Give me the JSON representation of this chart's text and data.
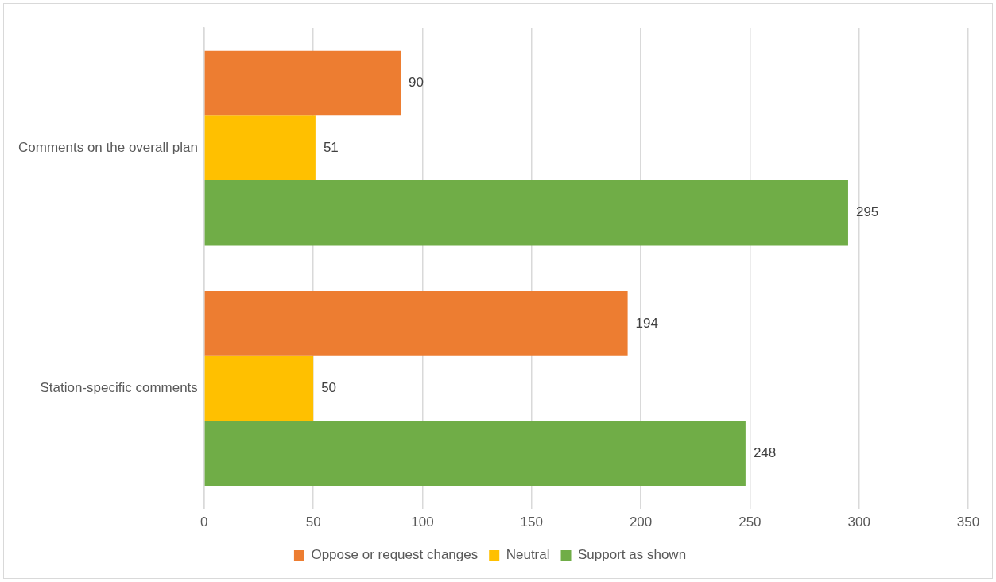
{
  "chart_data": {
    "type": "bar",
    "orientation": "horizontal",
    "categories": [
      "Comments on the overall plan",
      "Station-specific comments"
    ],
    "series": [
      {
        "name": "Oppose or request changes",
        "color": "#ed7d31",
        "values": [
          90,
          194
        ]
      },
      {
        "name": "Neutral",
        "color": "#ffc000",
        "values": [
          51,
          50
        ]
      },
      {
        "name": "Support as shown",
        "color": "#70ad47",
        "values": [
          295,
          248
        ]
      }
    ],
    "xlim": [
      0,
      350
    ],
    "xticks": [
      0,
      50,
      100,
      150,
      200,
      250,
      300,
      350
    ],
    "grid": "x",
    "legend": "bottom",
    "data_labels": true
  }
}
